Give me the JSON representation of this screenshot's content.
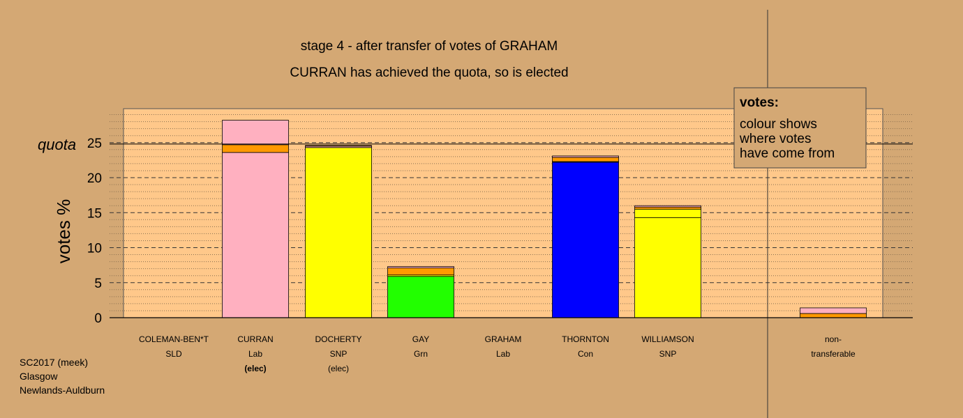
{
  "chart_data": {
    "type": "bar",
    "title": "stage 4 - after transfer of votes of GRAHAM",
    "subtitle": "CURRAN has achieved the quota, so is elected",
    "ylabel": "votes %",
    "ylim": [
      0,
      30
    ],
    "yticks": [
      0,
      5,
      10,
      15,
      20,
      25
    ],
    "quota": 24.8,
    "quota_label": "quota",
    "legend_box": {
      "title": "votes:",
      "lines": [
        "colour shows",
        "where votes",
        "have come from"
      ]
    },
    "categories": [
      {
        "name": "COLEMAN-BEN*T",
        "party": "SLD",
        "status": ""
      },
      {
        "name": "CURRAN",
        "party": "Lab",
        "status": "(elec)"
      },
      {
        "name": "DOCHERTY",
        "party": "SNP",
        "status": "(elec)"
      },
      {
        "name": "GAY",
        "party": "Grn",
        "status": ""
      },
      {
        "name": "GRAHAM",
        "party": "Lab",
        "status": ""
      },
      {
        "name": "THORNTON",
        "party": "Con",
        "status": ""
      },
      {
        "name": "WILLIAMSON",
        "party": "SNP",
        "status": ""
      },
      {
        "name": "non-",
        "party": "transferable",
        "status": ""
      }
    ],
    "bars": [
      [],
      [
        {
          "value": 23.6,
          "color": "#FFB0C0"
        },
        {
          "value": 1.1,
          "color": "#FF9900"
        },
        {
          "value": 3.5,
          "color": "#FFB0C0"
        }
      ],
      [
        {
          "value": 24.3,
          "color": "#FFFF00"
        },
        {
          "value": 0.2,
          "color": "#FFB0C0"
        },
        {
          "value": 0.1,
          "color": "#FF9900"
        }
      ],
      [
        {
          "value": 5.9,
          "color": "#22FF00"
        },
        {
          "value": 0.2,
          "color": "#FFFF00"
        },
        {
          "value": 1.0,
          "color": "#FF9900"
        },
        {
          "value": 0.2,
          "color": "#FFB0C0"
        }
      ],
      [],
      [
        {
          "value": 22.2,
          "color": "#0000FF"
        },
        {
          "value": 0.1,
          "color": "#FFFF00"
        },
        {
          "value": 0.6,
          "color": "#FF9900"
        },
        {
          "value": 0.2,
          "color": "#FFB0C0"
        }
      ],
      [
        {
          "value": 14.3,
          "color": "#FFFF00"
        },
        {
          "value": 1.2,
          "color": "#FFFF00"
        },
        {
          "value": 0.3,
          "color": "#FF9900"
        },
        {
          "value": 0.2,
          "color": "#FFB0C0"
        }
      ],
      [
        {
          "value": 0.6,
          "color": "#FF9900"
        },
        {
          "value": 0.8,
          "color": "#FFB0C0"
        }
      ]
    ],
    "colors": {
      "background": "#D4A874",
      "plot_area": "#FFC88A"
    }
  },
  "footer": {
    "line1": "SC2017 (meek)",
    "line2": "Glasgow",
    "line3": "Newlands-Auldburn"
  }
}
